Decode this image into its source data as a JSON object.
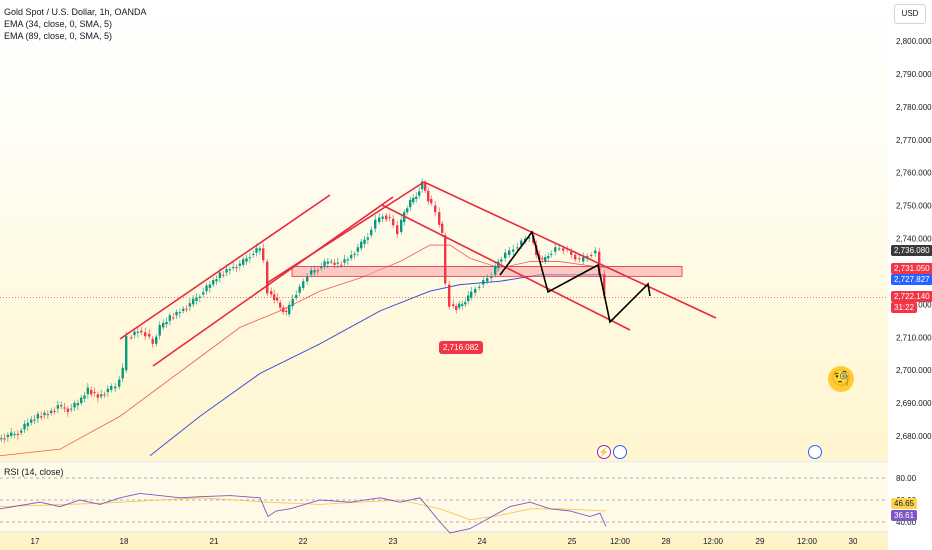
{
  "legend": {
    "title": "Gold Spot / U.S. Dollar, 1h, OANDA",
    "ema1": "EMA (34, close, 0, SMA, 5)",
    "ema2": "EMA (89, close, 0, SMA, 5)"
  },
  "currency_button": "USD",
  "rsi_label": "RSI (14, close)",
  "low_tag": "2,716.082",
  "price_tags": {
    "tag_2736": "2,736.080",
    "tag_2731": "2,731.050",
    "tag_2727": "2,727.827",
    "tag_2722": "2,722.140",
    "countdown": "31:22"
  },
  "rsi_tags": {
    "upper": "46.65",
    "lower": "36.61"
  },
  "colors": {
    "up": "#089981",
    "down": "#f23645",
    "ema34": "#f05a4f",
    "ema89": "#3f51d6",
    "channel": "#e8283c",
    "zone": "#f6a3a8",
    "rsi": "#7e57c2"
  },
  "chart_data": {
    "type": "candlestick",
    "title": "Gold Spot / U.S. Dollar, 1h, OANDA",
    "ylim": [
      2674,
      2806
    ],
    "y_ticks": [
      "2,800.000",
      "2,790.000",
      "2,780.000",
      "2,770.000",
      "2,760.000",
      "2,750.000",
      "2,740.000",
      "2,730.000",
      "2,720.000",
      "2,710.000",
      "2,700.000",
      "2,690.000",
      "2,680.000"
    ],
    "y_tick_values": [
      2800,
      2790,
      2780,
      2770,
      2760,
      2750,
      2740,
      2730,
      2720,
      2710,
      2700,
      2690,
      2680
    ],
    "x_ticks": [
      "17",
      "18",
      "21",
      "22",
      "23",
      "24",
      "25",
      "12:00",
      "28",
      "12:00",
      "29",
      "12:00",
      "30"
    ],
    "price_path": [
      [
        0,
        2679
      ],
      [
        10,
        2680
      ],
      [
        20,
        2681
      ],
      [
        30,
        2684
      ],
      [
        40,
        2686
      ],
      [
        50,
        2687
      ],
      [
        60,
        2689
      ],
      [
        70,
        2688
      ],
      [
        80,
        2690
      ],
      [
        90,
        2694
      ],
      [
        100,
        2692
      ],
      [
        110,
        2694
      ],
      [
        118,
        2695
      ],
      [
        125,
        2700
      ],
      [
        130,
        2710
      ],
      [
        140,
        2712
      ],
      [
        148,
        2711
      ],
      [
        155,
        2708
      ],
      [
        162,
        2713
      ],
      [
        172,
        2716
      ],
      [
        182,
        2718
      ],
      [
        192,
        2720
      ],
      [
        202,
        2723
      ],
      [
        212,
        2726
      ],
      [
        222,
        2729
      ],
      [
        232,
        2731
      ],
      [
        242,
        2732
      ],
      [
        252,
        2735
      ],
      [
        262,
        2737
      ],
      [
        266,
        2733
      ],
      [
        270,
        2724
      ],
      [
        276,
        2722
      ],
      [
        282,
        2719
      ],
      [
        288,
        2717
      ],
      [
        295,
        2722
      ],
      [
        302,
        2725
      ],
      [
        310,
        2729
      ],
      [
        320,
        2731
      ],
      [
        330,
        2733
      ],
      [
        340,
        2732
      ],
      [
        350,
        2734
      ],
      [
        360,
        2737
      ],
      [
        370,
        2741
      ],
      [
        378,
        2745
      ],
      [
        385,
        2747
      ],
      [
        392,
        2746
      ],
      [
        400,
        2742
      ],
      [
        406,
        2748
      ],
      [
        412,
        2751
      ],
      [
        418,
        2753
      ],
      [
        424,
        2757
      ],
      [
        430,
        2752
      ],
      [
        438,
        2748
      ],
      [
        444,
        2741
      ],
      [
        448,
        2726
      ],
      [
        452,
        2720
      ],
      [
        458,
        2719
      ],
      [
        464,
        2720
      ],
      [
        470,
        2722
      ],
      [
        478,
        2725
      ],
      [
        486,
        2727
      ],
      [
        494,
        2729
      ],
      [
        500,
        2733
      ],
      [
        508,
        2735
      ],
      [
        516,
        2737
      ],
      [
        524,
        2739
      ],
      [
        532,
        2741
      ],
      [
        538,
        2735
      ],
      [
        544,
        2733
      ],
      [
        550,
        2735
      ],
      [
        558,
        2737
      ],
      [
        566,
        2737
      ],
      [
        574,
        2735
      ],
      [
        582,
        2733
      ],
      [
        590,
        2735
      ],
      [
        598,
        2736
      ],
      [
        603,
        2729
      ],
      [
        606,
        2722
      ]
    ],
    "ema34_path": [
      [
        0,
        2674
      ],
      [
        60,
        2676
      ],
      [
        120,
        2686
      ],
      [
        160,
        2695
      ],
      [
        200,
        2704
      ],
      [
        240,
        2713
      ],
      [
        280,
        2718
      ],
      [
        320,
        2724
      ],
      [
        360,
        2728
      ],
      [
        400,
        2733
      ],
      [
        430,
        2738
      ],
      [
        450,
        2738
      ],
      [
        470,
        2734
      ],
      [
        500,
        2731
      ],
      [
        530,
        2733
      ],
      [
        560,
        2733
      ],
      [
        606,
        2731
      ]
    ],
    "ema89_path": [
      [
        150,
        2674
      ],
      [
        200,
        2686
      ],
      [
        260,
        2699
      ],
      [
        320,
        2708
      ],
      [
        380,
        2718
      ],
      [
        430,
        2724
      ],
      [
        460,
        2726
      ],
      [
        500,
        2727
      ],
      [
        540,
        2729
      ],
      [
        606,
        2729
      ]
    ],
    "zone": [
      2728.5,
      2731.5
    ],
    "rsi_levels": [
      80,
      60,
      40
    ],
    "rsi_tick_labels": [
      "80.00",
      "60.00",
      "40.00"
    ],
    "rsi_path": [
      [
        0,
        52
      ],
      [
        20,
        55
      ],
      [
        40,
        58
      ],
      [
        60,
        54
      ],
      [
        80,
        60
      ],
      [
        100,
        56
      ],
      [
        120,
        62
      ],
      [
        140,
        66
      ],
      [
        160,
        64
      ],
      [
        180,
        62
      ],
      [
        200,
        63
      ],
      [
        230,
        64
      ],
      [
        260,
        62
      ],
      [
        268,
        45
      ],
      [
        276,
        50
      ],
      [
        290,
        52
      ],
      [
        320,
        60
      ],
      [
        350,
        58
      ],
      [
        380,
        62
      ],
      [
        400,
        58
      ],
      [
        420,
        62
      ],
      [
        440,
        40
      ],
      [
        450,
        30
      ],
      [
        470,
        34
      ],
      [
        490,
        44
      ],
      [
        510,
        54
      ],
      [
        530,
        58
      ],
      [
        550,
        52
      ],
      [
        570,
        50
      ],
      [
        590,
        45
      ],
      [
        600,
        48
      ],
      [
        606,
        36
      ]
    ],
    "rsi_ma_path": [
      [
        0,
        54
      ],
      [
        100,
        57
      ],
      [
        200,
        62
      ],
      [
        268,
        58
      ],
      [
        320,
        56
      ],
      [
        400,
        60
      ],
      [
        440,
        52
      ],
      [
        470,
        42
      ],
      [
        500,
        46
      ],
      [
        530,
        52
      ],
      [
        560,
        52
      ],
      [
        606,
        50
      ]
    ]
  }
}
